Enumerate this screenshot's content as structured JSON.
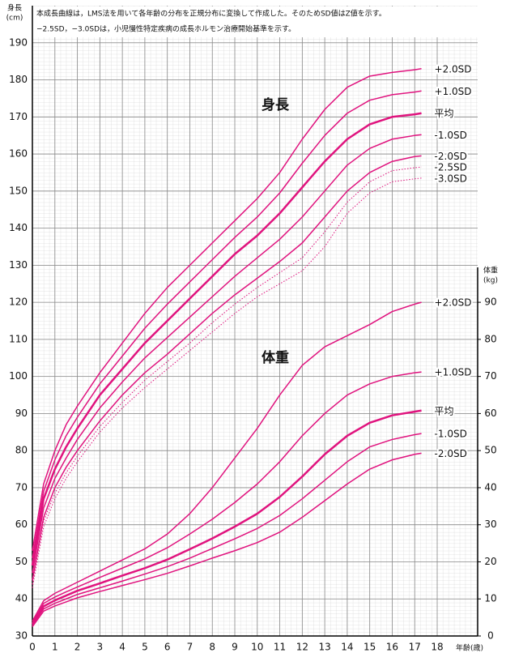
{
  "chart_data": {
    "type": "line",
    "notes": [
      "本成長曲線は，LMS法を用いて各年齢の分布を正規分布に変換して作成した。そのためSD値はZ値を示す。",
      "−2.5SD，−3.0SDは，小児慢性特定疾病の成長ホルモン治療開始基準を示す。"
    ],
    "y_label": [
      "身長",
      "(cm)"
    ],
    "y2_label": [
      "体重",
      "(kg)"
    ],
    "x_label": "年齢(歳)",
    "annotations": [
      "身長",
      "体重"
    ],
    "x": [
      0,
      0.5,
      1,
      1.5,
      2,
      3,
      4,
      5,
      6,
      7,
      8,
      9,
      10,
      11,
      12,
      13,
      14,
      15,
      16,
      17,
      17.3
    ],
    "xlim": [
      0,
      19.8
    ],
    "xticks": [
      0,
      1,
      2,
      3,
      4,
      5,
      6,
      7,
      8,
      9,
      10,
      11,
      12,
      13,
      14,
      15,
      16,
      17,
      18
    ],
    "ylim": [
      30,
      200
    ],
    "yticks": [
      30,
      40,
      50,
      60,
      70,
      80,
      90,
      100,
      110,
      120,
      130,
      140,
      150,
      160,
      170,
      180,
      190
    ],
    "y2lim": [
      0,
      170
    ],
    "y2ticks": [
      0,
      10,
      20,
      30,
      40,
      50,
      60,
      70,
      80,
      90
    ],
    "grid": true,
    "series": [
      {
        "name": "+2.0SD",
        "color": "#e0137e",
        "line_width": 1.5,
        "values": [
          53,
          71,
          80,
          87,
          92,
          101,
          109,
          117,
          124,
          130,
          136,
          142,
          148,
          155,
          164,
          172,
          178,
          181,
          182,
          182.7,
          183
        ]
      },
      {
        "name": "+1.0SD",
        "color": "#e0137e",
        "line_width": 1.5,
        "values": [
          51,
          69,
          77.5,
          84,
          89,
          98,
          105.5,
          113,
          119.5,
          125.5,
          131.5,
          137.5,
          143,
          149.5,
          157.5,
          165,
          171,
          174.5,
          176,
          176.7,
          177
        ]
      },
      {
        "name": "平均",
        "color": "#e0137e",
        "line_width": 2.5,
        "values": [
          49,
          67,
          75,
          81,
          86,
          95,
          102,
          109,
          115,
          121,
          127,
          133,
          138,
          144,
          151,
          158,
          164,
          168,
          170,
          170.7,
          171
        ]
      },
      {
        "name": "-1.0SD",
        "color": "#e0137e",
        "line_width": 1.5,
        "values": [
          47,
          64.5,
          72.5,
          78,
          83,
          91.5,
          98.5,
          105,
          110.5,
          116,
          121.5,
          127,
          132,
          137,
          143,
          150,
          157,
          161.5,
          164,
          165,
          165.2
        ]
      },
      {
        "name": "-2.0SD",
        "color": "#e0137e",
        "line_width": 1.5,
        "values": [
          45,
          62,
          70,
          75.5,
          80,
          88,
          95,
          101,
          106,
          111.5,
          117,
          122,
          126.5,
          131,
          136,
          143,
          150,
          155,
          158,
          159.3,
          159.5
        ]
      },
      {
        "name": "-2.5SD",
        "color": "#e0137e",
        "line_width": 1,
        "dash": "dotted",
        "values": [
          44,
          61,
          68.5,
          74,
          78.5,
          86.5,
          93,
          99,
          104,
          109,
          114.5,
          119.5,
          124,
          128,
          132,
          139,
          147,
          152.5,
          155.5,
          156.3,
          156.5
        ]
      },
      {
        "name": "-3.0SD",
        "color": "#e0137e",
        "line_width": 1,
        "dash": "dotted",
        "values": [
          43,
          59.5,
          67,
          72.5,
          77,
          85,
          91.5,
          97,
          102,
          107,
          112,
          117,
          121.5,
          125,
          128.5,
          135,
          144,
          149.5,
          152.5,
          153.3,
          153.5
        ]
      },
      {
        "name": "+2.0SD",
        "color": "#e0137e",
        "line_width": 1.5,
        "axis": "y2",
        "values": [
          4,
          9.5,
          11.5,
          13,
          14.5,
          17.5,
          20.5,
          23.5,
          27.5,
          33,
          40,
          48,
          56,
          65,
          73,
          78,
          81,
          84,
          87.5,
          89.5,
          90
        ]
      },
      {
        "name": "+1.0SD",
        "color": "#e0137e",
        "line_width": 1.5,
        "axis": "y2",
        "values": [
          3.5,
          8.8,
          10.5,
          11.9,
          13.2,
          15.8,
          18.3,
          20.8,
          23.8,
          27.5,
          31.5,
          36,
          41,
          47,
          54,
          60,
          65,
          68,
          70,
          71,
          71.2
        ]
      },
      {
        "name": "平均",
        "color": "#e0137e",
        "line_width": 2.5,
        "axis": "y2",
        "values": [
          3.2,
          8,
          9.6,
          10.9,
          12.2,
          14.2,
          16.3,
          18.3,
          20.6,
          23.4,
          26.3,
          29.5,
          33,
          37.5,
          43,
          49,
          54,
          57.5,
          59.5,
          60.5,
          60.8
        ]
      },
      {
        "name": "-1.0SD",
        "color": "#e0137e",
        "line_width": 1.5,
        "axis": "y2",
        "values": [
          2.9,
          7.3,
          8.8,
          10,
          11.2,
          13,
          14.8,
          16.7,
          18.7,
          21,
          23.6,
          26.2,
          29,
          32.5,
          37,
          42,
          47,
          51,
          53,
          54.3,
          54.6
        ]
      },
      {
        "name": "-2.0SD",
        "color": "#e0137e",
        "line_width": 1.5,
        "axis": "y2",
        "values": [
          2.5,
          6.7,
          8.1,
          9.2,
          10.3,
          12,
          13.6,
          15.2,
          16.9,
          18.9,
          21,
          23,
          25.2,
          28,
          32,
          36.5,
          41,
          45,
          47.5,
          49,
          49.3
        ]
      }
    ]
  }
}
